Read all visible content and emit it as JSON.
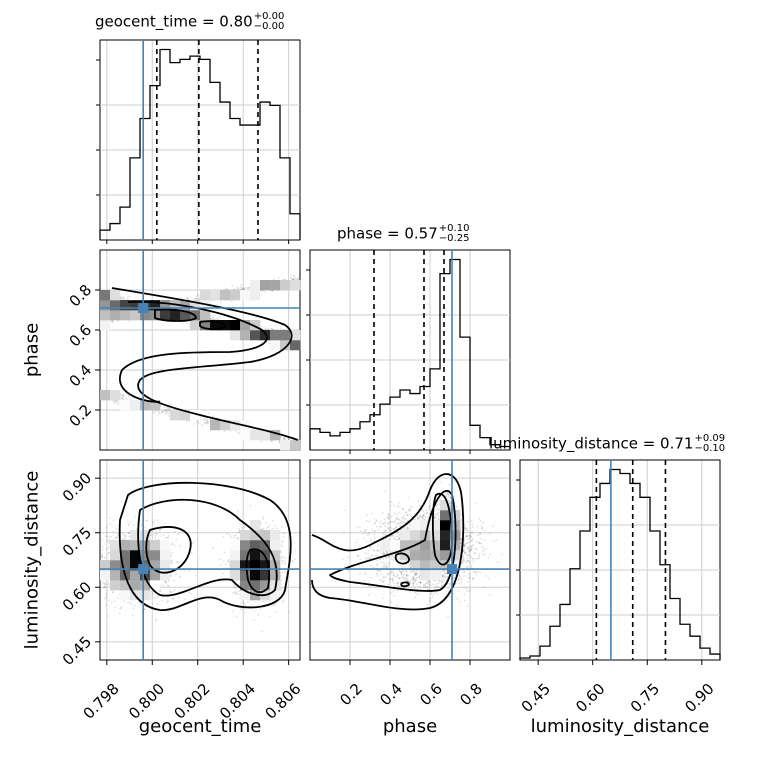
{
  "chart_data": {
    "type": "corner",
    "parameters": [
      "geocent_time",
      "phase",
      "luminosity_distance"
    ],
    "truths": [
      0.7996,
      0.71,
      0.65
    ],
    "truth_color": "#4682b4",
    "grid": true,
    "ranges": {
      "geocent_time": [
        0.7977,
        0.8065
      ],
      "phase": [
        0.0,
        1.0
      ],
      "luminosity_distance": [
        0.4,
        0.95
      ]
    },
    "ticks": {
      "geocent_time": [
        "0.798",
        "0.800",
        "0.802",
        "0.804",
        "0.806"
      ],
      "phase": [
        "0.2",
        "0.4",
        "0.6",
        "0.8"
      ],
      "luminosity_distance": [
        "0.45",
        "0.60",
        "0.75",
        "0.90"
      ]
    },
    "titles": [
      {
        "param": "geocent_time",
        "label": "geocent_time = 0.80",
        "plus": "+0.00",
        "minus": "−0.00"
      },
      {
        "param": "phase",
        "label": "phase = 0.57",
        "plus": "+0.10",
        "minus": "−0.25"
      },
      {
        "param": "luminosity_distance",
        "label": "luminosity_distance = 0.71",
        "plus": "+0.09",
        "minus": "−0.10"
      }
    ],
    "marginals": {
      "geocent_time": {
        "edges_start": 0.7977,
        "bin_width": 0.00044,
        "counts": [
          3,
          5,
          10,
          25,
          37,
          47,
          58,
          54,
          55,
          56,
          55,
          48,
          42,
          37,
          35,
          35,
          42,
          41,
          25,
          8
        ],
        "quantiles": [
          0.8002,
          0.80205,
          0.80465
        ]
      },
      "phase": {
        "edges_start": 0.0,
        "bin_width": 0.05,
        "counts": [
          12,
          10,
          8,
          10,
          12,
          16,
          20,
          26,
          30,
          34,
          32,
          36,
          46,
          100,
          108,
          64,
          14,
          7,
          3,
          2
        ],
        "quantiles": [
          0.32,
          0.57,
          0.67
        ]
      },
      "luminosity_distance": {
        "edges_start": 0.4,
        "bin_width": 0.0275,
        "counts": [
          1,
          2,
          7,
          17,
          28,
          46,
          65,
          82,
          89,
          96,
          94,
          89,
          82,
          65,
          48,
          31,
          18,
          12,
          6,
          3
        ],
        "quantiles": [
          0.61,
          0.71,
          0.8
        ]
      }
    },
    "samples_2d": {
      "phase_vs_geocent_time": {
        "density": "S-shaped ridge running from phase ~0.75 at 0.7977 through ~0.63 at 0.802, ~0.5 at 0.806, back to ~0.3 and down to ~0.05 at 0.806"
      },
      "luminosity_distance_vs_geocent_time": {
        "density": "broad blob, peaks near (0.7993, 0.69) and (0.805, 0.63)"
      },
      "luminosity_distance_vs_phase": {
        "density": "concentrated near phase 0.65–0.72, luminosity_distance 0.65–0.85"
      }
    }
  }
}
